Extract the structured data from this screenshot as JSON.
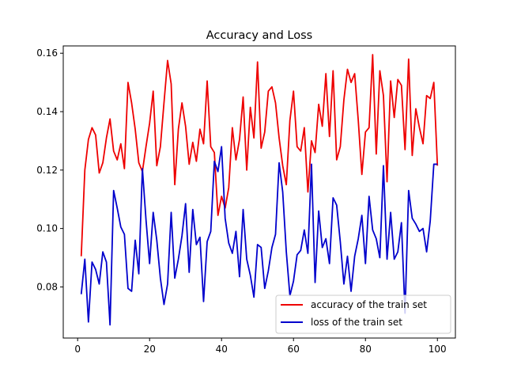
{
  "chart_data": {
    "type": "line",
    "title": "Accuracy and Loss",
    "xlabel": "",
    "ylabel": "",
    "xlim": [
      -4,
      105
    ],
    "ylim": [
      0.0625,
      0.1625
    ],
    "xticks": [
      0,
      20,
      40,
      60,
      80,
      100
    ],
    "yticks": [
      0.08,
      0.1,
      0.12,
      0.14,
      0.16
    ],
    "grid": false,
    "legend_position": "lower-right",
    "series": [
      {
        "name": "accuracy of the train set",
        "color": "#ee0000",
        "x": [
          1,
          2,
          3,
          4,
          5,
          6,
          7,
          8,
          9,
          10,
          11,
          12,
          13,
          14,
          15,
          16,
          17,
          18,
          19,
          20,
          21,
          22,
          23,
          24,
          25,
          26,
          27,
          28,
          29,
          30,
          31,
          32,
          33,
          34,
          35,
          36,
          37,
          38,
          39,
          40,
          41,
          42,
          43,
          44,
          45,
          46,
          47,
          48,
          49,
          50,
          51,
          52,
          53,
          54,
          55,
          56,
          57,
          58,
          59,
          60,
          61,
          62,
          63,
          64,
          65,
          66,
          67,
          68,
          69,
          70,
          71,
          72,
          73,
          74,
          75,
          76,
          77,
          78,
          79,
          80,
          81,
          82,
          83,
          84,
          85,
          86,
          87,
          88,
          89,
          90,
          91,
          92,
          93,
          94,
          95,
          96,
          97,
          98,
          99,
          100
        ],
        "values": [
          0.0905,
          0.12,
          0.1305,
          0.1345,
          0.132,
          0.119,
          0.1225,
          0.131,
          0.1375,
          0.1265,
          0.1235,
          0.129,
          0.1205,
          0.15,
          0.143,
          0.134,
          0.1225,
          0.1195,
          0.128,
          0.136,
          0.147,
          0.1215,
          0.128,
          0.143,
          0.1575,
          0.1495,
          0.115,
          0.134,
          0.143,
          0.135,
          0.122,
          0.1295,
          0.123,
          0.134,
          0.129,
          0.1505,
          0.128,
          0.126,
          0.1045,
          0.111,
          0.107,
          0.114,
          0.1345,
          0.1235,
          0.1305,
          0.145,
          0.12,
          0.1415,
          0.131,
          0.157,
          0.1275,
          0.133,
          0.147,
          0.1485,
          0.143,
          0.131,
          0.1215,
          0.115,
          0.137,
          0.147,
          0.128,
          0.1265,
          0.1345,
          0.1125,
          0.13,
          0.126,
          0.1425,
          0.135,
          0.153,
          0.1315,
          0.154,
          0.1235,
          0.128,
          0.144,
          0.1545,
          0.15,
          0.153,
          0.137,
          0.1185,
          0.133,
          0.1345,
          0.1595,
          0.1255,
          0.154,
          0.1455,
          0.116,
          0.1505,
          0.138,
          0.151,
          0.149,
          0.127,
          0.158,
          0.125,
          0.141,
          0.1345,
          0.129,
          0.1455,
          0.1445,
          0.15,
          0.1215
        ]
      },
      {
        "name": "loss of the train set",
        "color": "#0000cc",
        "x": [
          1,
          2,
          3,
          4,
          5,
          6,
          7,
          8,
          9,
          10,
          11,
          12,
          13,
          14,
          15,
          16,
          17,
          18,
          19,
          20,
          21,
          22,
          23,
          24,
          25,
          26,
          27,
          28,
          29,
          30,
          31,
          32,
          33,
          34,
          35,
          36,
          37,
          38,
          39,
          40,
          41,
          42,
          43,
          44,
          45,
          46,
          47,
          48,
          49,
          50,
          51,
          52,
          53,
          54,
          55,
          56,
          57,
          58,
          59,
          60,
          61,
          62,
          63,
          64,
          65,
          66,
          67,
          68,
          69,
          70,
          71,
          72,
          73,
          74,
          75,
          76,
          77,
          78,
          79,
          80,
          81,
          82,
          83,
          84,
          85,
          86,
          87,
          88,
          89,
          90,
          91,
          92,
          93,
          94,
          95,
          96,
          97,
          98,
          99,
          100
        ],
        "values": [
          0.0775,
          0.0895,
          0.068,
          0.0885,
          0.086,
          0.081,
          0.092,
          0.0885,
          0.067,
          0.113,
          0.107,
          0.1005,
          0.098,
          0.0795,
          0.0785,
          0.096,
          0.0845,
          0.1205,
          0.103,
          0.088,
          0.1055,
          0.096,
          0.083,
          0.074,
          0.081,
          0.1055,
          0.083,
          0.0895,
          0.0975,
          0.1085,
          0.085,
          0.1065,
          0.0945,
          0.097,
          0.075,
          0.0955,
          0.099,
          0.123,
          0.1195,
          0.128,
          0.1035,
          0.095,
          0.0915,
          0.099,
          0.0835,
          0.1065,
          0.0895,
          0.084,
          0.0765,
          0.0945,
          0.0935,
          0.0795,
          0.0855,
          0.0935,
          0.098,
          0.1225,
          0.1125,
          0.092,
          0.077,
          0.082,
          0.091,
          0.0925,
          0.0995,
          0.0915,
          0.122,
          0.0815,
          0.106,
          0.0935,
          0.0965,
          0.088,
          0.1105,
          0.108,
          0.0955,
          0.081,
          0.0905,
          0.0785,
          0.0905,
          0.0965,
          0.1045,
          0.088,
          0.111,
          0.0995,
          0.0965,
          0.09,
          0.1215,
          0.0895,
          0.1055,
          0.0895,
          0.092,
          0.102,
          0.071,
          0.113,
          0.1035,
          0.1015,
          0.099,
          0.1,
          0.092,
          0.1025,
          0.122,
          0.122
        ]
      }
    ]
  }
}
